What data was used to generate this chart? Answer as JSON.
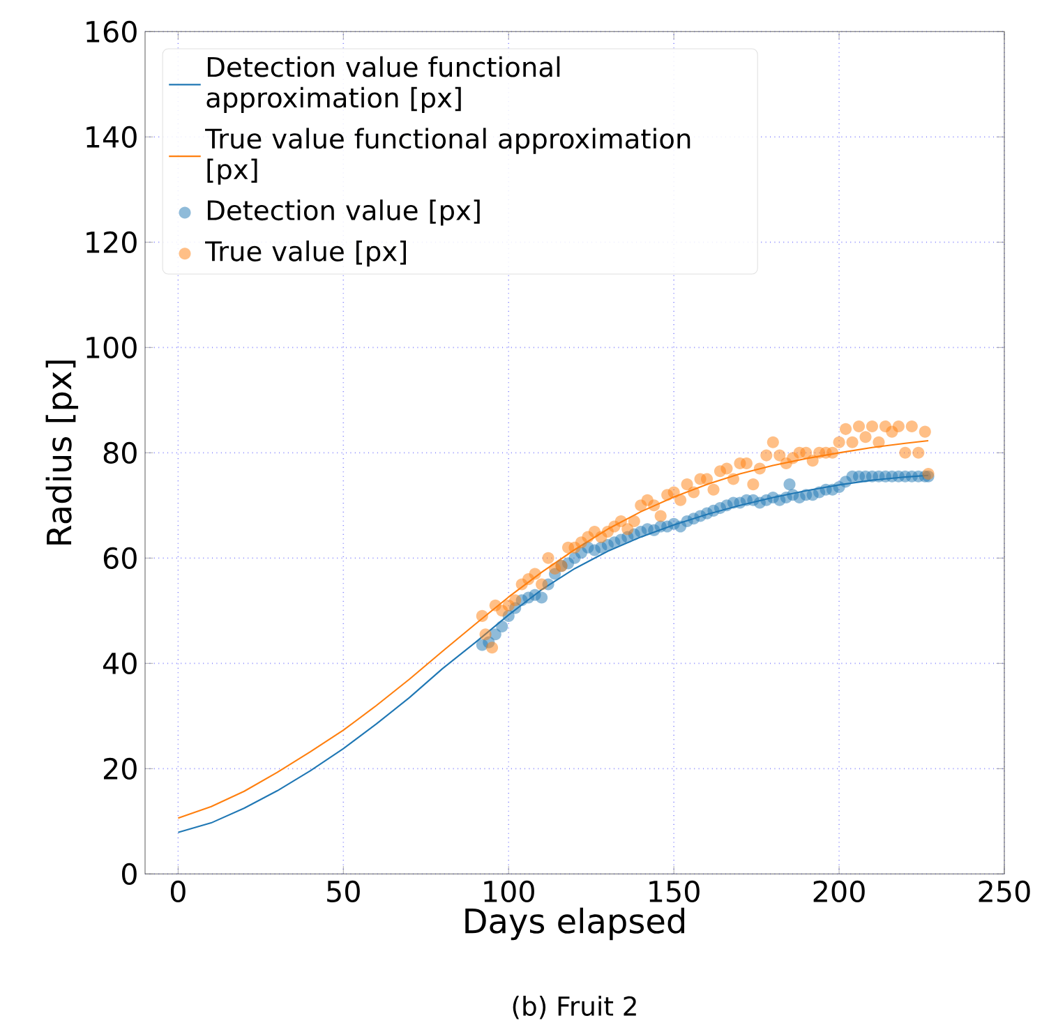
{
  "chart_data": {
    "type": "line",
    "xlabel": "Days elapsed",
    "ylabel": "Radius [px]",
    "annotations": [
      "(b) Fruit 2"
    ],
    "xlim": [
      -10,
      250
    ],
    "ylim": [
      0,
      160
    ],
    "xticks": [
      0,
      50,
      100,
      150,
      200,
      250
    ],
    "yticks": [
      0,
      20,
      40,
      60,
      80,
      100,
      120,
      140,
      160
    ],
    "grid": true,
    "legend": "top left",
    "series": [
      {
        "name": "Detection value functional approximation [px]",
        "color": "#1f77b4",
        "x": [
          0,
          10,
          20,
          30,
          40,
          50,
          60,
          70,
          80,
          90,
          100,
          110,
          120,
          130,
          140,
          150,
          160,
          170,
          180,
          190,
          200,
          210,
          220,
          227
        ],
        "values": [
          7.9,
          9.7,
          12.5,
          15.8,
          19.6,
          23.8,
          28.5,
          33.5,
          39,
          44,
          49.2,
          54,
          58,
          61.3,
          64,
          66.3,
          68.3,
          70,
          71.5,
          72.8,
          73.9,
          74.8,
          75.4,
          75.7
        ]
      },
      {
        "name": "True value functional approximation [px]",
        "color": "#ff7f0e",
        "x": [
          0,
          10,
          20,
          30,
          40,
          50,
          60,
          70,
          80,
          90,
          100,
          110,
          120,
          130,
          140,
          150,
          160,
          170,
          180,
          190,
          200,
          210,
          220,
          227
        ],
        "values": [
          10.6,
          12.8,
          15.7,
          19.3,
          23.2,
          27.3,
          32,
          37,
          42.3,
          47.5,
          52.6,
          57.3,
          61.6,
          65.5,
          68.8,
          71.6,
          74,
          76,
          77.6,
          78.9,
          80,
          81,
          81.8,
          82.3
        ]
      },
      {
        "name": "Detection value [px]",
        "type": "scatter",
        "color": "#1f77b4",
        "x": [
          92,
          94,
          96,
          98,
          100,
          102,
          104,
          106,
          108,
          110,
          112,
          114,
          116,
          118,
          120,
          122,
          124,
          126,
          128,
          130,
          132,
          134,
          136,
          138,
          140,
          142,
          144,
          146,
          148,
          150,
          152,
          154,
          156,
          158,
          160,
          162,
          164,
          166,
          168,
          170,
          172,
          174,
          176,
          178,
          180,
          182,
          184,
          185,
          186,
          188,
          190,
          192,
          194,
          196,
          198,
          200,
          202,
          204,
          206,
          208,
          210,
          212,
          214,
          216,
          218,
          220,
          222,
          224,
          226,
          227
        ],
        "values": [
          43.5,
          44,
          45.5,
          47,
          49,
          50.5,
          52,
          52.5,
          53,
          52.5,
          55,
          57,
          58.5,
          59,
          60,
          61,
          62,
          61.5,
          62,
          62.5,
          63,
          63.5,
          64,
          64.5,
          65,
          65.5,
          65.3,
          66,
          66,
          66.5,
          66,
          67,
          67.5,
          68,
          68.5,
          69,
          69.5,
          70,
          70.5,
          70.5,
          71,
          71,
          70.5,
          71,
          71.5,
          71,
          71.5,
          74,
          72,
          71.5,
          72,
          72,
          72.5,
          73,
          73,
          73.5,
          74.5,
          75.5,
          75.5,
          75.5,
          75.5,
          75.5,
          75.5,
          75.5,
          75.5,
          75.5,
          75.5,
          75.5,
          75.5,
          75.5
        ]
      },
      {
        "name": "True value [px]",
        "type": "scatter",
        "color": "#ff7f0e",
        "x": [
          92,
          93,
          95,
          96,
          98,
          100,
          102,
          104,
          106,
          108,
          110,
          112,
          114,
          116,
          118,
          120,
          122,
          124,
          126,
          128,
          130,
          132,
          134,
          136,
          138,
          140,
          142,
          144,
          146,
          148,
          150,
          152,
          154,
          156,
          158,
          160,
          162,
          164,
          166,
          168,
          170,
          172,
          174,
          176,
          178,
          180,
          182,
          184,
          186,
          188,
          190,
          192,
          194,
          196,
          198,
          200,
          202,
          204,
          206,
          208,
          210,
          212,
          214,
          216,
          218,
          220,
          222,
          224,
          226,
          227
        ],
        "values": [
          49,
          45.5,
          43,
          51,
          50,
          51,
          52,
          55,
          56,
          57,
          55,
          60,
          58,
          58.5,
          62,
          62,
          63,
          64,
          65,
          64,
          65,
          66,
          67,
          65.5,
          67,
          70,
          71,
          70,
          68,
          72,
          72.5,
          71,
          74,
          72.5,
          75,
          75,
          73,
          76.5,
          77,
          75,
          78,
          78,
          74,
          77,
          79.5,
          82,
          79.5,
          78,
          79,
          80,
          80,
          78.5,
          80,
          80,
          80,
          82,
          84.5,
          82,
          85,
          83,
          85,
          82,
          85,
          84,
          85,
          80,
          85,
          80,
          84,
          76
        ]
      }
    ]
  }
}
